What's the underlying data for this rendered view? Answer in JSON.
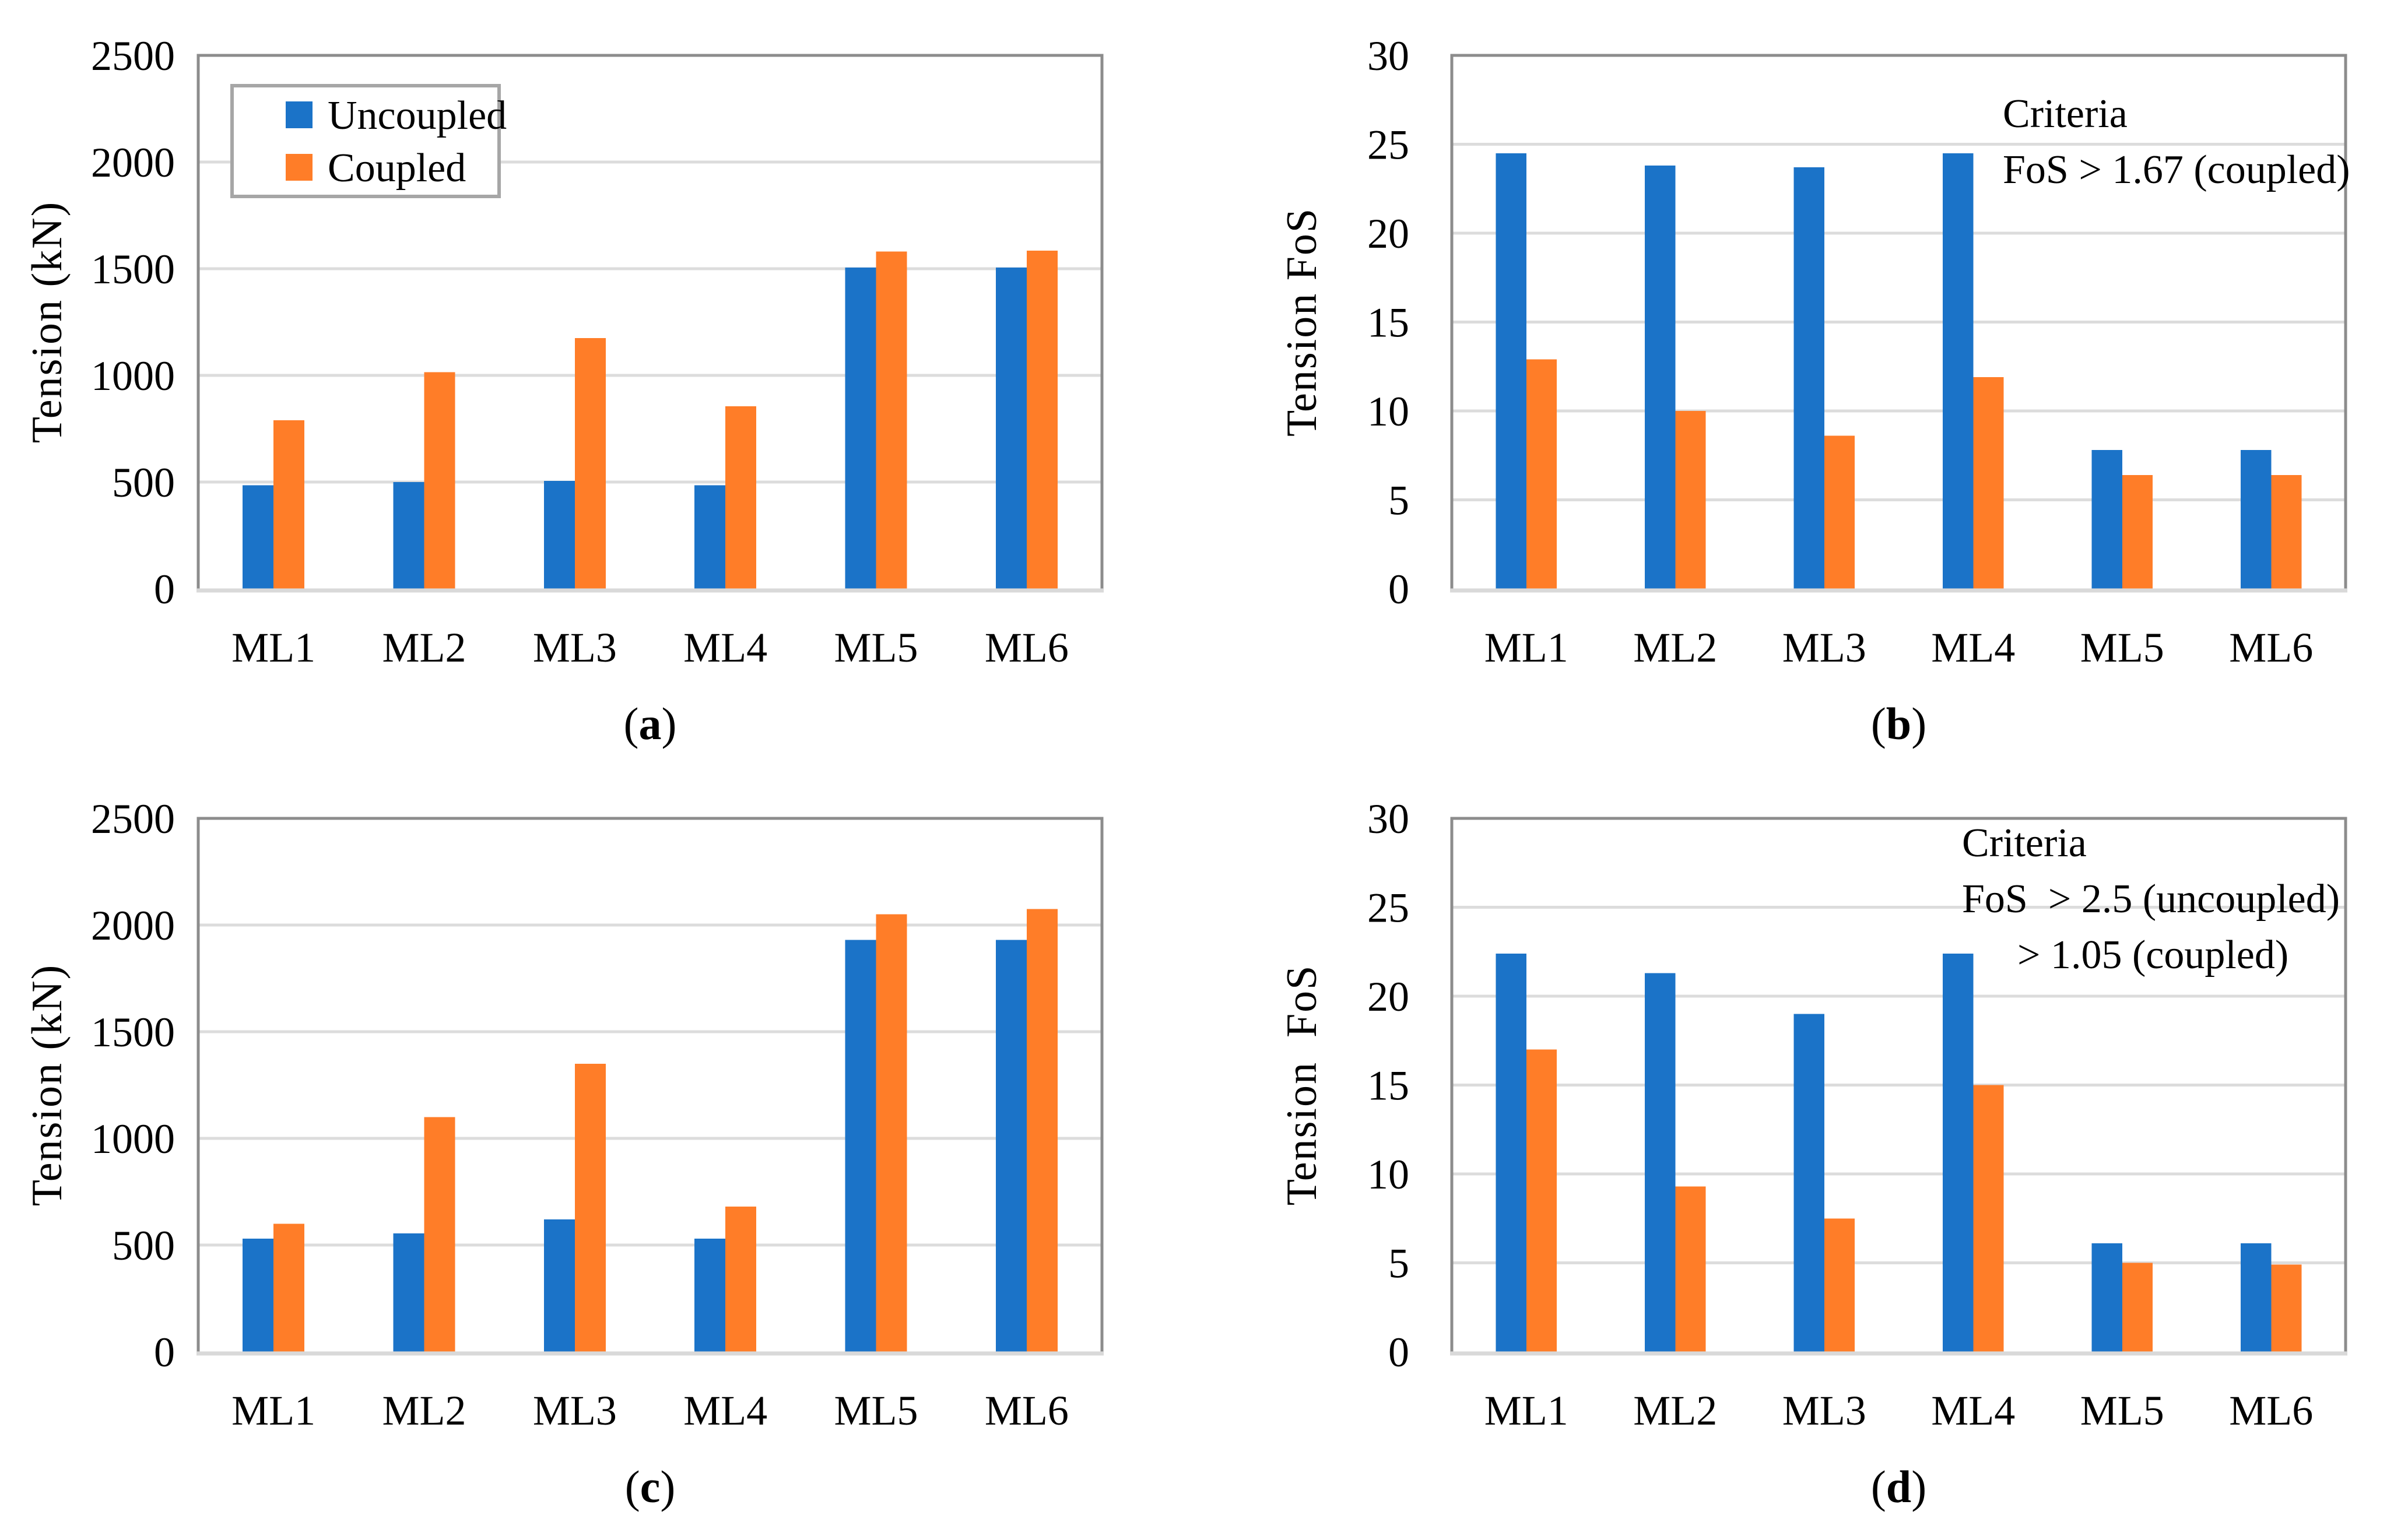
{
  "figure": {
    "background": "#ffffff",
    "panel_order": [
      "a",
      "b",
      "c",
      "d"
    ]
  },
  "palette": {
    "uncoupled": "#1B73C8",
    "coupled": "#FF7D28",
    "gridline": "#DCDCDC",
    "plot_border": "#8C8C8C",
    "bottom_axis": "#D9D9D9",
    "legend_border": "#A6A6A6",
    "text": "#000000"
  },
  "legend": {
    "items": [
      {
        "label": "Uncoupled",
        "color_key": "uncoupled"
      },
      {
        "label": "Coupled",
        "color_key": "coupled"
      }
    ]
  },
  "chart_data": [
    {
      "id": "a",
      "type": "bar",
      "caption": "(a)",
      "ylabel": "Tension (kN)",
      "xlabel": "",
      "ylim": [
        0,
        2500
      ],
      "yticks": [
        0,
        500,
        1000,
        1500,
        2000,
        2500
      ],
      "grid": true,
      "legend_position": "upper-left-inside",
      "show_legend": true,
      "categories": [
        "ML1",
        "ML2",
        "ML3",
        "ML4",
        "ML5",
        "ML6"
      ],
      "series": [
        {
          "name": "Uncoupled",
          "values": [
            485,
            500,
            505,
            485,
            1505,
            1505
          ]
        },
        {
          "name": "Coupled",
          "values": [
            790,
            1015,
            1175,
            855,
            1580,
            1585
          ]
        }
      ],
      "annotation": []
    },
    {
      "id": "b",
      "type": "bar",
      "caption": "(b)",
      "ylabel": "Tension FoS",
      "xlabel": "",
      "ylim": [
        0,
        30
      ],
      "yticks": [
        0,
        5,
        10,
        15,
        20,
        25,
        30
      ],
      "grid": true,
      "show_legend": false,
      "categories": [
        "ML1",
        "ML2",
        "ML3",
        "ML4",
        "ML5",
        "ML6"
      ],
      "series": [
        {
          "name": "Uncoupled",
          "values": [
            24.5,
            23.8,
            23.7,
            24.5,
            7.8,
            7.8
          ]
        },
        {
          "name": "Coupled",
          "values": [
            12.9,
            10.0,
            8.6,
            11.9,
            6.4,
            6.4
          ]
        }
      ],
      "annotation": [
        "Criteria",
        "FoS > 1.67 (coupled)"
      ]
    },
    {
      "id": "c",
      "type": "bar",
      "caption": "(c)",
      "ylabel": "Tension (kN)",
      "xlabel": "",
      "ylim": [
        0,
        2500
      ],
      "yticks": [
        0,
        500,
        1000,
        1500,
        2000,
        2500
      ],
      "grid": true,
      "show_legend": false,
      "categories": [
        "ML1",
        "ML2",
        "ML3",
        "ML4",
        "ML5",
        "ML6"
      ],
      "series": [
        {
          "name": "Uncoupled",
          "values": [
            530,
            555,
            620,
            530,
            1930,
            1930
          ]
        },
        {
          "name": "Coupled",
          "values": [
            600,
            1100,
            1350,
            680,
            2050,
            2075
          ]
        }
      ],
      "annotation": []
    },
    {
      "id": "d",
      "type": "bar",
      "caption": "(d)",
      "ylabel": "Tension  FoS",
      "xlabel": "",
      "ylim": [
        0,
        30
      ],
      "yticks": [
        0,
        5,
        10,
        15,
        20,
        25,
        30
      ],
      "grid": true,
      "show_legend": false,
      "categories": [
        "ML1",
        "ML2",
        "ML3",
        "ML4",
        "ML5",
        "ML6"
      ],
      "series": [
        {
          "name": "Uncoupled",
          "values": [
            22.4,
            21.3,
            19.0,
            22.4,
            6.1,
            6.1
          ]
        },
        {
          "name": "Coupled",
          "values": [
            17.0,
            9.3,
            7.5,
            15.0,
            5.0,
            4.9
          ]
        }
      ],
      "annotation": [
        "Criteria",
        "FoS  > 2.5 (uncoupled)",
        "> 1.05 (coupled)"
      ]
    }
  ]
}
